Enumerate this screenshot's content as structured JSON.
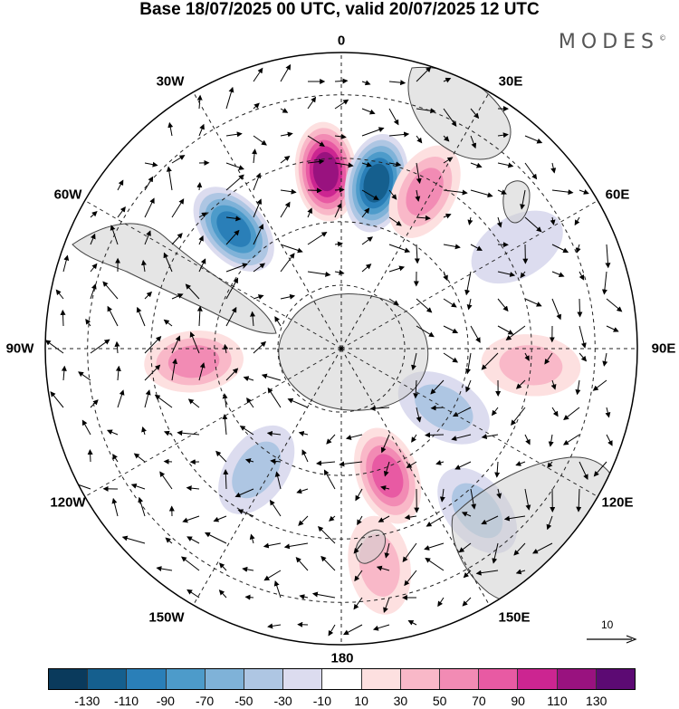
{
  "title": "Base 18/07/2025 00 UTC, valid 20/07/2025 12 UTC",
  "brand": "MODES",
  "brand_mark": "©",
  "longitude_labels": {
    "n0": "0",
    "n30e": "30E",
    "n60e": "60E",
    "n90e": "90E",
    "n120e": "120E",
    "n150e": "150E",
    "n180": "180",
    "n150w": "150W",
    "n120w": "120W",
    "n90w": "90W",
    "n60w": "60W",
    "n30w": "30W"
  },
  "reference_vector": {
    "label": "10"
  },
  "colorbar": {
    "colors": [
      "#0a3a5c",
      "#155f8e",
      "#2a7fb8",
      "#4d9bca",
      "#7fb2d8",
      "#aec6e3",
      "#dcdcef",
      "#ffffff",
      "#fde0e0",
      "#f9b8c8",
      "#f28bb4",
      "#e85aa3",
      "#cc2591",
      "#99127f",
      "#5c0a73"
    ],
    "labels": [
      "-130",
      "-110",
      "-90",
      "-70",
      "-50",
      "-30",
      "-10",
      "10",
      "30",
      "50",
      "70",
      "90",
      "110",
      "130"
    ]
  },
  "anomaly_blobs": [
    {
      "lon": -5,
      "lat": -48,
      "value": 110
    },
    {
      "lon": 12,
      "lat": -50,
      "value": -110
    },
    {
      "lon": -42,
      "lat": -52,
      "value": -90
    },
    {
      "lon": 28,
      "lat": -48,
      "value": 50
    },
    {
      "lon": 95,
      "lat": -45,
      "value": 30
    },
    {
      "lon": -95,
      "lat": -55,
      "value": 50
    },
    {
      "lon": -145,
      "lat": -55,
      "value": -30
    },
    {
      "lon": 160,
      "lat": -58,
      "value": 70
    },
    {
      "lon": 120,
      "lat": -62,
      "value": -30
    },
    {
      "lon": 140,
      "lat": -40,
      "value": -30
    },
    {
      "lon": 170,
      "lat": -38,
      "value": 30
    },
    {
      "lon": 60,
      "lat": -42,
      "value": -10
    }
  ]
}
